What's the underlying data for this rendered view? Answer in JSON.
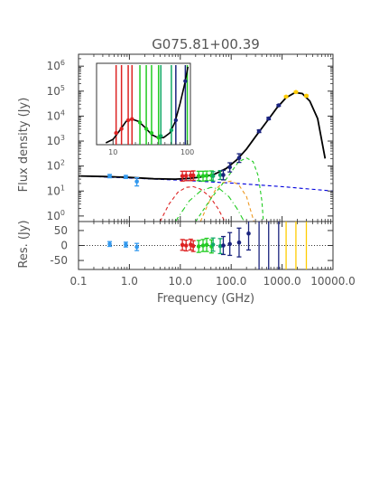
{
  "chart_data": {
    "type": "scatter",
    "title": "G075.81+00.39",
    "xlabel": "Frequency (GHz)",
    "ylabel_top": "Flux density (Jy)",
    "ylabel_bottom": "Res. (Jy)",
    "x_scale": "log",
    "xlim": [
      0.1,
      10000
    ],
    "x_ticks": [
      "0.1",
      "1.0",
      "10.0",
      "100.0",
      "1000.0",
      "10000.0"
    ],
    "x_tick_values": [
      0.1,
      1,
      10,
      100,
      1000,
      10000
    ],
    "main": {
      "y_scale": "log",
      "ylim": [
        0.6,
        3000000
      ],
      "y_ticks": [
        {
          "v": 1,
          "e": "0"
        },
        {
          "v": 10,
          "e": "1"
        },
        {
          "v": 100,
          "e": "2"
        },
        {
          "v": 1000,
          "e": "3"
        },
        {
          "v": 10000,
          "e": "4"
        },
        {
          "v": 100000,
          "e": "5"
        },
        {
          "v": 1000000,
          "e": "6"
        }
      ],
      "points": [
        {
          "x": 0.41,
          "y": 40,
          "lo": 34,
          "hi": 46,
          "c": "#3399ee"
        },
        {
          "x": 0.85,
          "y": 37,
          "lo": 32,
          "hi": 42,
          "c": "#3399ee"
        },
        {
          "x": 1.4,
          "y": 24,
          "lo": 16,
          "hi": 34,
          "c": "#3399ee"
        },
        {
          "x": 11,
          "y": 40,
          "lo": 25,
          "hi": 62,
          "c": "#dd2222"
        },
        {
          "x": 13,
          "y": 41,
          "lo": 26,
          "hi": 62,
          "c": "#dd2222"
        },
        {
          "x": 16,
          "y": 42,
          "lo": 26,
          "hi": 62,
          "c": "#dd2222"
        },
        {
          "x": 18,
          "y": 42,
          "lo": 27,
          "hi": 64,
          "c": "#dd2222"
        },
        {
          "x": 23,
          "y": 40,
          "lo": 26,
          "hi": 62,
          "c": "#22cc22"
        },
        {
          "x": 28,
          "y": 40,
          "lo": 25,
          "hi": 62,
          "c": "#22cc22"
        },
        {
          "x": 33,
          "y": 41,
          "lo": 26,
          "hi": 63,
          "c": "#22cc22"
        },
        {
          "x": 41,
          "y": 42,
          "lo": 27,
          "hi": 64,
          "c": "#22cc22"
        },
        {
          "x": 44,
          "y": 40,
          "lo": 25,
          "hi": 60,
          "c": "#11aa66"
        },
        {
          "x": 61,
          "y": 44,
          "lo": 29,
          "hi": 66,
          "c": "#11aa66"
        },
        {
          "x": 70,
          "y": 44,
          "lo": 28,
          "hi": 67,
          "c": "#1a237e"
        },
        {
          "x": 94,
          "y": 90,
          "lo": 58,
          "hi": 135,
          "c": "#1a237e"
        },
        {
          "x": 143,
          "y": 210,
          "lo": 140,
          "hi": 310,
          "c": "#1a237e"
        },
        {
          "x": 353,
          "y": 2500,
          "lo": 2200,
          "hi": 2800,
          "c": "#1a237e"
        },
        {
          "x": 545,
          "y": 8000,
          "lo": 7200,
          "hi": 8900,
          "c": "#1a237e"
        },
        {
          "x": 857,
          "y": 27000,
          "lo": 25000,
          "hi": 29000,
          "c": "#1a237e"
        },
        {
          "x": 1200,
          "y": 60000,
          "lo": 56000,
          "hi": 64000,
          "c": "#ffcc00"
        },
        {
          "x": 1870,
          "y": 92000,
          "lo": 86000,
          "hi": 98000,
          "c": "#ffcc00"
        },
        {
          "x": 2998,
          "y": 65000,
          "lo": 60000,
          "hi": 70000,
          "c": "#ffcc00"
        }
      ]
    },
    "residual": {
      "ylim": [
        -80,
        80
      ],
      "y_ticks": [
        -50,
        0,
        50
      ],
      "zero_line": "dotted",
      "points": [
        {
          "x": 0.41,
          "y": 5,
          "err": 8,
          "c": "#3399ee"
        },
        {
          "x": 0.85,
          "y": 3,
          "err": 8,
          "c": "#3399ee"
        },
        {
          "x": 1.4,
          "y": -5,
          "err": 12,
          "c": "#3399ee"
        },
        {
          "x": 11,
          "y": 2,
          "err": 18,
          "c": "#dd2222"
        },
        {
          "x": 13,
          "y": 0,
          "err": 18,
          "c": "#dd2222"
        },
        {
          "x": 16,
          "y": 3,
          "err": 18,
          "c": "#dd2222"
        },
        {
          "x": 18,
          "y": -2,
          "err": 18,
          "c": "#dd2222"
        },
        {
          "x": 23,
          "y": -3,
          "err": 20,
          "c": "#22cc22"
        },
        {
          "x": 28,
          "y": 0,
          "err": 20,
          "c": "#22cc22"
        },
        {
          "x": 33,
          "y": 2,
          "err": 22,
          "c": "#22cc22"
        },
        {
          "x": 41,
          "y": -3,
          "err": 22,
          "c": "#22cc22"
        },
        {
          "x": 44,
          "y": 3,
          "err": 22,
          "c": "#11aa66"
        },
        {
          "x": 61,
          "y": -2,
          "err": 25,
          "c": "#11aa66"
        },
        {
          "x": 70,
          "y": 0,
          "err": 30,
          "c": "#1a237e"
        },
        {
          "x": 94,
          "y": 5,
          "err": 38,
          "c": "#1a237e"
        },
        {
          "x": 143,
          "y": 10,
          "err": 48,
          "c": "#1a237e"
        },
        {
          "x": 220,
          "y": 40,
          "err": 55,
          "c": "#1a237e"
        },
        {
          "x": 353,
          "y": 0,
          "err": 200,
          "c": "#1a237e"
        },
        {
          "x": 545,
          "y": 0,
          "err": 200,
          "c": "#1a237e"
        },
        {
          "x": 857,
          "y": 0,
          "err": 200,
          "c": "#1a237e"
        },
        {
          "x": 1200,
          "y": 0,
          "err": 200,
          "c": "#ffcc00"
        },
        {
          "x": 1870,
          "y": 0,
          "err": 200,
          "c": "#ffcc00"
        },
        {
          "x": 2998,
          "y": 0,
          "err": 200,
          "c": "#ffcc00"
        }
      ]
    },
    "model": {
      "total": {
        "c": "#000000",
        "style": "solid",
        "pts": [
          [
            0.1,
            40
          ],
          [
            0.3,
            38
          ],
          [
            1,
            35
          ],
          [
            3,
            31
          ],
          [
            8,
            30
          ],
          [
            15,
            32
          ],
          [
            25,
            36
          ],
          [
            45,
            45
          ],
          [
            80,
            80
          ],
          [
            130,
            180
          ],
          [
            200,
            480
          ],
          [
            300,
            1500
          ],
          [
            500,
            6000
          ],
          [
            800,
            22000
          ],
          [
            1200,
            55000
          ],
          [
            1800,
            88000
          ],
          [
            2500,
            80000
          ],
          [
            3500,
            40000
          ],
          [
            5000,
            8000
          ],
          [
            7000,
            200
          ]
        ]
      },
      "free_free": {
        "c": "#0000dd",
        "style": "dashed",
        "pts": [
          [
            0.1,
            40
          ],
          [
            1,
            33
          ],
          [
            10,
            27
          ],
          [
            100,
            21
          ],
          [
            1000,
            15
          ],
          [
            10000,
            10
          ]
        ]
      },
      "comp_red": {
        "c": "#dd2222",
        "style": "dashed",
        "pts": [
          [
            4,
            0.6
          ],
          [
            6,
            3
          ],
          [
            9,
            9
          ],
          [
            13,
            14
          ],
          [
            18,
            15
          ],
          [
            25,
            12
          ],
          [
            38,
            6
          ],
          [
            55,
            2
          ],
          [
            75,
            0.6
          ]
        ]
      },
      "comp_orange": {
        "c": "#ee9922",
        "style": "dashed",
        "pts": [
          [
            25,
            0.6
          ],
          [
            35,
            3
          ],
          [
            50,
            12
          ],
          [
            70,
            22
          ],
          [
            100,
            25
          ],
          [
            140,
            18
          ],
          [
            200,
            6
          ],
          [
            280,
            0.6
          ]
        ]
      },
      "comp_green": {
        "c": "#22cc22",
        "style": "dashed",
        "pts": [
          [
            20,
            0.6
          ],
          [
            40,
            5
          ],
          [
            80,
            30
          ],
          [
            140,
            150
          ],
          [
            200,
            210
          ],
          [
            270,
            150
          ],
          [
            340,
            40
          ],
          [
            400,
            4
          ],
          [
            430,
            0.6
          ]
        ]
      },
      "comp_green2": {
        "c": "#22cc22",
        "style": "dashed",
        "pts": [
          [
            8,
            0.6
          ],
          [
            15,
            4
          ],
          [
            25,
            10
          ],
          [
            40,
            14
          ],
          [
            60,
            12
          ],
          [
            90,
            6
          ],
          [
            130,
            2
          ],
          [
            180,
            0.6
          ]
        ]
      }
    },
    "inset": {
      "x_scale": "log",
      "xlim": [
        6,
        110
      ],
      "x_ticks": [
        "10",
        "100"
      ],
      "x_tick_values": [
        10,
        100
      ],
      "y_scale": "log",
      "ylim": [
        25,
        140
      ],
      "curve": [
        [
          8,
          26
        ],
        [
          10,
          28
        ],
        [
          12,
          33
        ],
        [
          15,
          41
        ],
        [
          18,
          43
        ],
        [
          22,
          41
        ],
        [
          27,
          36
        ],
        [
          33,
          31
        ],
        [
          40,
          29
        ],
        [
          48,
          29
        ],
        [
          58,
          32
        ],
        [
          68,
          40
        ],
        [
          80,
          60
        ],
        [
          92,
          90
        ],
        [
          102,
          130
        ]
      ],
      "points": [
        {
          "x": 11,
          "y": 32,
          "c": "#dd2222"
        },
        {
          "x": 13,
          "y": 35,
          "c": "#dd2222"
        },
        {
          "x": 16,
          "y": 42,
          "c": "#dd2222"
        },
        {
          "x": 18,
          "y": 43,
          "c": "#dd2222"
        },
        {
          "x": 23,
          "y": 40,
          "c": "#22cc22"
        },
        {
          "x": 28,
          "y": 35,
          "c": "#22cc22"
        },
        {
          "x": 33,
          "y": 32,
          "c": "#22cc22"
        },
        {
          "x": 41,
          "y": 29,
          "c": "#22cc22"
        },
        {
          "x": 44,
          "y": 30,
          "c": "#11aa66"
        },
        {
          "x": 61,
          "y": 34,
          "c": "#11aa66"
        },
        {
          "x": 70,
          "y": 42,
          "c": "#1a237e"
        },
        {
          "x": 94,
          "y": 96,
          "c": "#1a237e"
        }
      ],
      "vlines": [
        {
          "x": 11,
          "c": "#dd2222"
        },
        {
          "x": 13,
          "c": "#dd2222"
        },
        {
          "x": 16,
          "c": "#dd2222"
        },
        {
          "x": 18,
          "c": "#dd2222"
        },
        {
          "x": 23,
          "c": "#22cc22"
        },
        {
          "x": 28,
          "c": "#22cc22"
        },
        {
          "x": 33,
          "c": "#22cc22"
        },
        {
          "x": 41,
          "c": "#22cc22"
        },
        {
          "x": 44,
          "c": "#11aa66"
        },
        {
          "x": 61,
          "c": "#11aa66"
        },
        {
          "x": 70,
          "c": "#1a237e"
        },
        {
          "x": 94,
          "c": "#1a237e"
        },
        {
          "x": 100,
          "c": "#22cc22"
        }
      ]
    }
  }
}
